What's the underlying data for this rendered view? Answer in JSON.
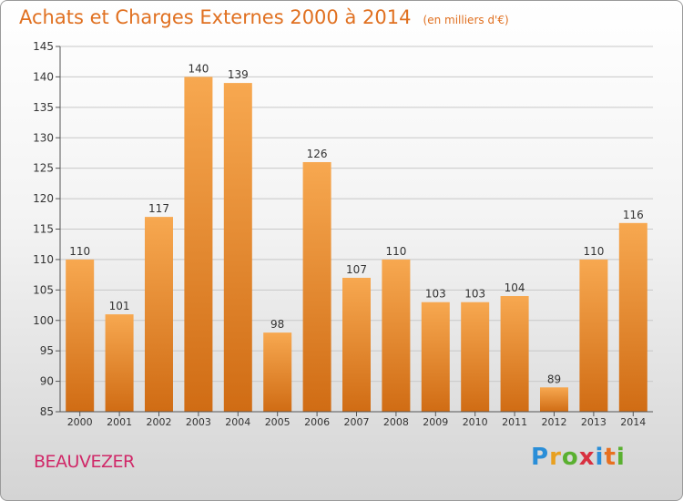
{
  "chart_data": {
    "type": "bar",
    "title": "Achats et Charges Externes 2000 à 2014",
    "subtitle": "(en milliers d'€)",
    "categories": [
      "2000",
      "2001",
      "2002",
      "2003",
      "2004",
      "2005",
      "2006",
      "2007",
      "2008",
      "2009",
      "2010",
      "2011",
      "2012",
      "2013",
      "2014"
    ],
    "values": [
      110,
      101,
      117,
      140,
      139,
      98,
      126,
      107,
      110,
      103,
      103,
      104,
      89,
      110,
      116
    ],
    "ylim": [
      85,
      145
    ],
    "yticks": [
      85,
      90,
      95,
      100,
      105,
      110,
      115,
      120,
      125,
      130,
      135,
      140,
      145
    ],
    "grid": true,
    "bar_color": "#f08a28"
  },
  "footer": {
    "city": "BEAUVEZER",
    "logo_letters": [
      "P",
      "r",
      "o",
      "x",
      "i",
      "t",
      "i"
    ]
  }
}
